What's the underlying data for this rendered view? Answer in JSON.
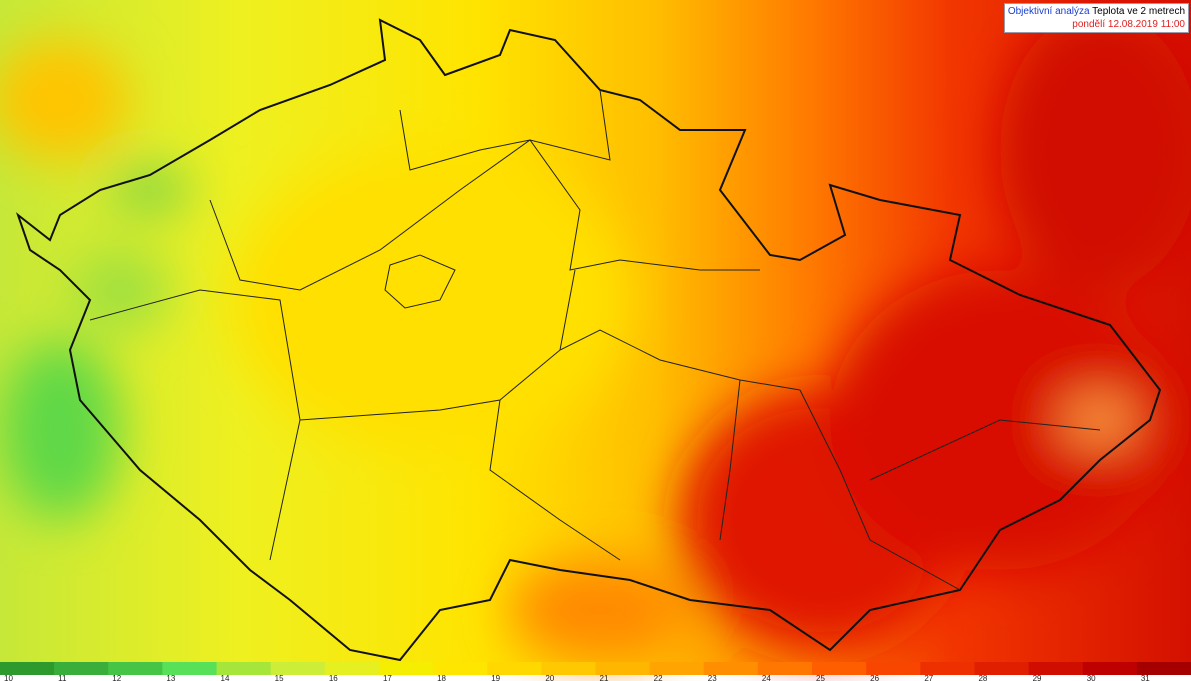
{
  "header": {
    "product": "Objektivní analýza",
    "title": "Teplota ve 2 metrech",
    "time": "pondělí 12.08.2019 11:00"
  },
  "legend": {
    "labels": [
      10,
      11,
      12,
      13,
      14,
      15,
      16,
      17,
      18,
      19,
      20,
      21,
      22,
      23,
      24,
      25,
      26,
      27,
      28,
      29,
      30,
      31
    ],
    "colors": [
      "#2e9a2e",
      "#3aae3a",
      "#46c446",
      "#58e058",
      "#a6e63a",
      "#ccee38",
      "#e6f020",
      "#f6ee00",
      "#ffe600",
      "#ffd800",
      "#ffc800",
      "#ffb600",
      "#ffa400",
      "#ff8e00",
      "#ff7600",
      "#ff5e00",
      "#f84600",
      "#ee3000",
      "#e01e00",
      "#d00e00",
      "#be0000",
      "#a40000"
    ]
  }
}
